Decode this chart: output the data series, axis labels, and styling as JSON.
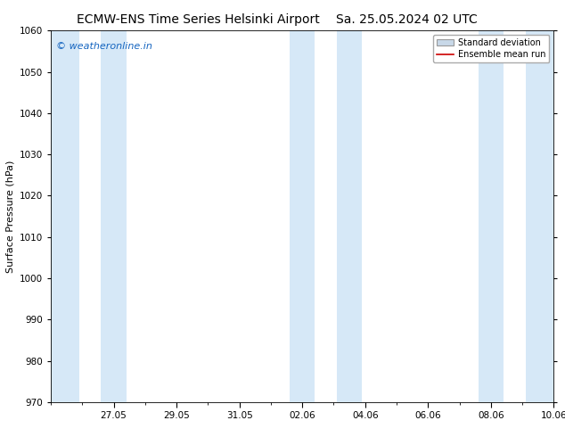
{
  "title_left": "ECMW-ENS Time Series Helsinki Airport",
  "title_right": "Sa. 25.05.2024 02 UTC",
  "ylabel": "Surface Pressure (hPa)",
  "ylim": [
    970,
    1060
  ],
  "yticks": [
    970,
    980,
    990,
    1000,
    1010,
    1020,
    1030,
    1040,
    1050,
    1060
  ],
  "xlim_start": 0.0,
  "xlim_end": 16.0,
  "xtick_labels": [
    "27.05",
    "29.05",
    "31.05",
    "02.06",
    "04.06",
    "06.06",
    "08.06",
    "10.06"
  ],
  "xtick_positions": [
    2,
    4,
    6,
    8,
    10,
    12,
    14,
    16
  ],
  "minor_xtick_positions": [
    0,
    1,
    2,
    3,
    4,
    5,
    6,
    7,
    8,
    9,
    10,
    11,
    12,
    13,
    14,
    15,
    16
  ],
  "shaded_bands": [
    {
      "x_start": 0.0,
      "x_end": 0.9
    },
    {
      "x_start": 1.6,
      "x_end": 2.4
    },
    {
      "x_start": 7.6,
      "x_end": 8.4
    },
    {
      "x_start": 9.1,
      "x_end": 9.9
    },
    {
      "x_start": 13.6,
      "x_end": 14.4
    },
    {
      "x_start": 15.1,
      "x_end": 16.0
    }
  ],
  "shaded_color": "#d6e8f7",
  "watermark_text": "© weatheronline.in",
  "watermark_color": "#1565c0",
  "legend_std_label": "Standard deviation",
  "legend_mean_label": "Ensemble mean run",
  "legend_std_facecolor": "#c8d8e8",
  "legend_std_edgecolor": "#999999",
  "legend_mean_color": "#cc0000",
  "bg_color": "#ffffff",
  "plot_bg_color": "#ffffff",
  "title_fontsize": 10,
  "label_fontsize": 8,
  "tick_fontsize": 7.5,
  "watermark_fontsize": 8,
  "legend_fontsize": 7
}
